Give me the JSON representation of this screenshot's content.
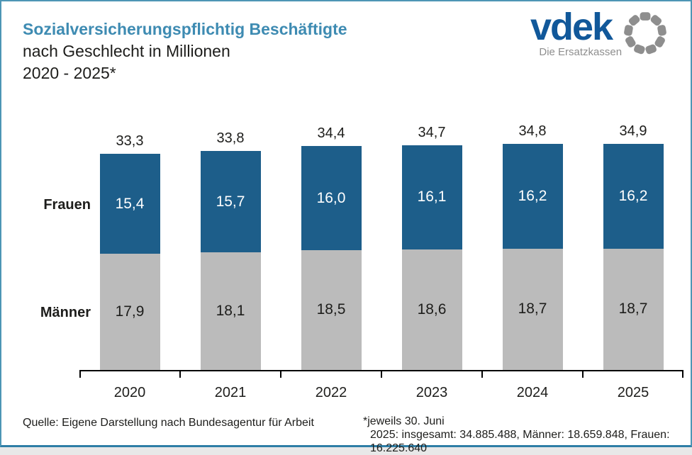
{
  "header": {
    "title_line1": "Sozialversicherungspflichtig Beschäftigte",
    "title_line2": "nach Geschlecht in Millionen",
    "title_line3": "2020 - 2025*",
    "title_accent_color": "#3e8bb2"
  },
  "logo": {
    "brand": "vdek",
    "tagline": "Die Ersatzkassen",
    "brand_color": "#11589a",
    "ring_color": "#8e8e8e"
  },
  "chart_data": {
    "type": "bar",
    "stacked": true,
    "title": "Sozialversicherungspflichtig Beschäftigte nach Geschlecht in Millionen 2020 - 2025*",
    "xlabel": "",
    "ylabel": "Millionen",
    "ylim": [
      0,
      35
    ],
    "grid": false,
    "legend_position": "left-of-bars",
    "categories": [
      "2020",
      "2021",
      "2022",
      "2023",
      "2024",
      "2025"
    ],
    "series": [
      {
        "name": "Frauen",
        "color": "#1d5e8a",
        "label_color": "#ffffff",
        "values": [
          15.4,
          15.7,
          16.0,
          16.1,
          16.2,
          16.2
        ],
        "value_labels": [
          "15,4",
          "15,7",
          "16,0",
          "16,1",
          "16,2",
          "16,2"
        ]
      },
      {
        "name": "Männer",
        "color": "#bbbbbb",
        "label_color": "#1d1d1b",
        "values": [
          17.9,
          18.1,
          18.5,
          18.6,
          18.7,
          18.7
        ],
        "value_labels": [
          "17,9",
          "18,1",
          "18,5",
          "18,6",
          "18,7",
          "18,7"
        ]
      }
    ],
    "totals": [
      33.3,
      33.8,
      34.4,
      34.7,
      34.8,
      34.9
    ],
    "total_labels": [
      "33,3",
      "33,8",
      "34,4",
      "34,7",
      "34,8",
      "34,9"
    ]
  },
  "footer": {
    "source": "Quelle: Eigene Darstellung nach Bundesagentur für Arbeit",
    "footnote_line1": "*jeweils 30. Juni",
    "footnote_line2": "2025: insgesamt: 34.885.488, Männer: 18.659.848, Frauen: 16.225.640"
  }
}
